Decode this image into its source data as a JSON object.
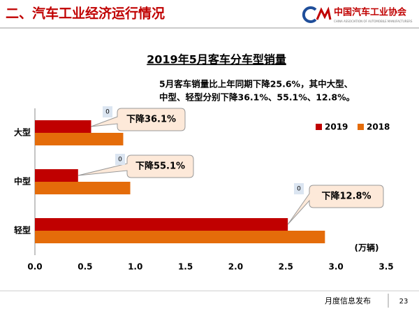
{
  "header": {
    "title": "二、汽车工业经济运行情况",
    "logo_cn": "中国汽车工业协会",
    "logo_en": "CHINA ASSOCIATION OF AUTOMOBILE MANUFACTURERS"
  },
  "chart_data": {
    "type": "hbar",
    "title": "2019年5月客车分车型销量",
    "subtitle": [
      "5月客车销量比上年同期下降25.6%，其中大型、",
      "中型、轻型分别下降36.1%、55.1%、12.8%。"
    ],
    "categories": [
      "大型",
      "中型",
      "轻型"
    ],
    "series": [
      {
        "name": "2019",
        "color": "#c00000",
        "values": [
          0.56,
          0.43,
          2.52
        ]
      },
      {
        "name": "2018",
        "color": "#e46c0a",
        "values": [
          0.88,
          0.95,
          2.89
        ]
      }
    ],
    "annotations": [
      "下降36.1%",
      "下降55.1%",
      "下降12.8%"
    ],
    "annotation_markers": [
      "0",
      "0",
      "0"
    ],
    "xlabel": "(万辆)",
    "xlim": [
      0,
      3.5
    ],
    "xticks": [
      {
        "value": 0,
        "label": "0.0"
      },
      0.5,
      {
        "value": 1,
        "label": "1.0"
      },
      1.5,
      {
        "value": 2,
        "label": "2.0"
      },
      2.5,
      {
        "value": 3,
        "label": "3.0"
      },
      3.5
    ],
    "legend": "right"
  },
  "footer": {
    "text": "月度信息发布",
    "page": "23"
  }
}
